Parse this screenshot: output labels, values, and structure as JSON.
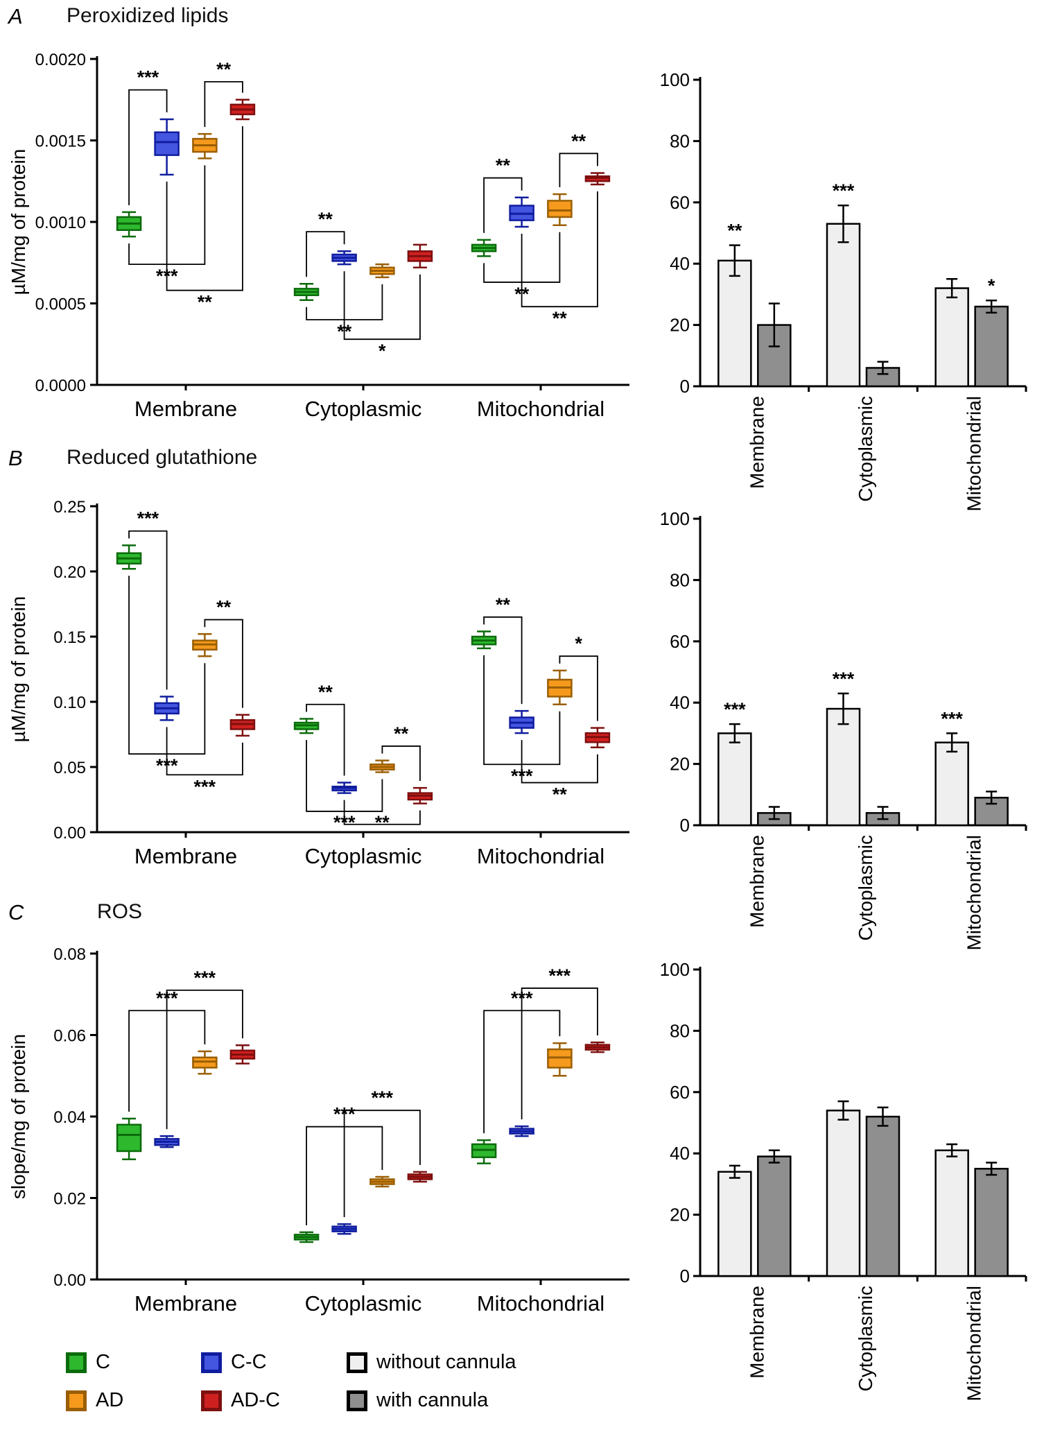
{
  "panels": [
    {
      "letter": "A",
      "title": "Peroxidized lipids"
    },
    {
      "letter": "B",
      "title": "Reduced glutathione"
    },
    {
      "letter": "C",
      "title": "ROS"
    }
  ],
  "legend": {
    "items": [
      {
        "label": "C",
        "fill": "#2eb82e",
        "border": "#0c6b0c"
      },
      {
        "label": "C-C",
        "fill": "#4455e0",
        "border": "#101d9e"
      },
      {
        "label": "without cannula",
        "fill": "#efefef",
        "border": "#000000"
      },
      {
        "label": "AD",
        "fill": "#f59a1d",
        "border": "#9a5f05"
      },
      {
        "label": "AD-C",
        "fill": "#cf2020",
        "border": "#7d0f0f"
      },
      {
        "label": "with cannula",
        "fill": "#8f8f8f",
        "border": "#000000"
      }
    ]
  },
  "series_styles": {
    "C": {
      "fill": "#2eb82e",
      "stroke": "#0c6b0c"
    },
    "C-C": {
      "fill": "#4455e0",
      "stroke": "#101d9e"
    },
    "AD": {
      "fill": "#f59a1d",
      "stroke": "#9a5f05"
    },
    "AD-C": {
      "fill": "#cf2020",
      "stroke": "#7d0f0f"
    }
  },
  "bar_styles": [
    {
      "name": "without cannula",
      "fill": "#efefef",
      "stroke": "#000000"
    },
    {
      "name": "with cannula",
      "fill": "#8f8f8f",
      "stroke": "#000000"
    }
  ],
  "chart_data": [
    {
      "panel": "A",
      "boxplot": {
        "type": "box",
        "title": "Peroxidized lipids",
        "ylabel": "µM/mg of protein",
        "ylim": [
          0,
          0.002
        ],
        "yticks": [
          0,
          0.0005,
          0.001,
          0.0015,
          0.002
        ],
        "tick_decimals": 4,
        "categories": [
          "Membrane",
          "Cytoplasmic",
          "Mitochondrial"
        ],
        "series": [
          "C",
          "C-C",
          "AD",
          "AD-C"
        ],
        "boxes": [
          [
            [
              0.00091,
              0.00095,
              0.00099,
              0.00103,
              0.00106
            ],
            [
              0.00129,
              0.00141,
              0.00149,
              0.00155,
              0.00163
            ],
            [
              0.00139,
              0.00143,
              0.00147,
              0.00151,
              0.00154
            ],
            [
              0.00163,
              0.00166,
              0.00169,
              0.00172,
              0.00175
            ]
          ],
          [
            [
              0.00052,
              0.00055,
              0.00057,
              0.00059,
              0.00062
            ],
            [
              0.00074,
              0.00076,
              0.00078,
              0.0008,
              0.00082
            ],
            [
              0.00066,
              0.00068,
              0.0007,
              0.00072,
              0.00074
            ],
            [
              0.00072,
              0.00076,
              0.00079,
              0.00082,
              0.00086
            ]
          ],
          [
            [
              0.00079,
              0.00082,
              0.00084,
              0.00086,
              0.00089
            ],
            [
              0.00097,
              0.00101,
              0.00105,
              0.0011,
              0.00115
            ],
            [
              0.00098,
              0.00103,
              0.00107,
              0.00113,
              0.00117
            ],
            [
              0.00123,
              0.00125,
              0.00127,
              0.00128,
              0.0013
            ]
          ]
        ],
        "significance": [
          {
            "cat": 0,
            "a": 0,
            "b": 1,
            "y": 0.00181,
            "side": "top",
            "label": "***"
          },
          {
            "cat": 0,
            "a": 2,
            "b": 3,
            "y": 0.00186,
            "side": "top",
            "label": "**"
          },
          {
            "cat": 0,
            "a": 0,
            "b": 2,
            "y": 0.00074,
            "side": "bottom",
            "label": "***"
          },
          {
            "cat": 0,
            "a": 1,
            "b": 3,
            "y": 0.00058,
            "side": "bottom",
            "label": "**"
          },
          {
            "cat": 1,
            "a": 0,
            "b": 1,
            "y": 0.00094,
            "side": "top",
            "label": "**"
          },
          {
            "cat": 1,
            "a": 0,
            "b": 2,
            "y": 0.0004,
            "side": "bottom",
            "label": "**"
          },
          {
            "cat": 1,
            "a": 1,
            "b": 3,
            "y": 0.00028,
            "side": "bottom",
            "label": "*"
          },
          {
            "cat": 2,
            "a": 0,
            "b": 1,
            "y": 0.00127,
            "side": "top",
            "label": "**"
          },
          {
            "cat": 2,
            "a": 2,
            "b": 3,
            "y": 0.00142,
            "side": "top",
            "label": "**"
          },
          {
            "cat": 2,
            "a": 0,
            "b": 2,
            "y": 0.00063,
            "side": "bottom",
            "label": "**"
          },
          {
            "cat": 2,
            "a": 1,
            "b": 3,
            "y": 0.00048,
            "side": "bottom",
            "label": "**"
          }
        ]
      },
      "barchart": {
        "type": "bar",
        "ylim": [
          0,
          100
        ],
        "yticks": [
          0,
          20,
          40,
          60,
          80,
          100
        ],
        "categories": [
          "Membrane",
          "Cytoplasmic",
          "Mitochondrial"
        ],
        "series": [
          {
            "name": "without cannula",
            "values": [
              41,
              53,
              32
            ],
            "errors": [
              5,
              6,
              3
            ],
            "sig": [
              "**",
              "***",
              ""
            ]
          },
          {
            "name": "with cannula",
            "values": [
              20,
              6,
              26
            ],
            "errors": [
              7,
              2,
              2
            ],
            "sig": [
              "",
              "",
              "*"
            ]
          }
        ]
      }
    },
    {
      "panel": "B",
      "boxplot": {
        "type": "box",
        "title": "Reduced glutathione",
        "ylabel": "µM/mg of protein",
        "ylim": [
          0,
          0.25
        ],
        "yticks": [
          0,
          0.05,
          0.1,
          0.15,
          0.2,
          0.25
        ],
        "tick_decimals": 2,
        "categories": [
          "Membrane",
          "Cytoplasmic",
          "Mitochondrial"
        ],
        "series": [
          "C",
          "C-C",
          "AD",
          "AD-C"
        ],
        "boxes": [
          [
            [
              0.202,
              0.206,
              0.21,
              0.214,
              0.22
            ],
            [
              0.086,
              0.091,
              0.095,
              0.099,
              0.104
            ],
            [
              0.135,
              0.14,
              0.144,
              0.147,
              0.152
            ],
            [
              0.074,
              0.079,
              0.083,
              0.086,
              0.09
            ]
          ],
          [
            [
              0.076,
              0.079,
              0.082,
              0.084,
              0.087
            ],
            [
              0.03,
              0.032,
              0.034,
              0.035,
              0.038
            ],
            [
              0.046,
              0.048,
              0.05,
              0.052,
              0.055
            ],
            [
              0.022,
              0.025,
              0.028,
              0.03,
              0.034
            ]
          ],
          [
            [
              0.141,
              0.144,
              0.147,
              0.15,
              0.154
            ],
            [
              0.076,
              0.08,
              0.084,
              0.088,
              0.093
            ],
            [
              0.098,
              0.104,
              0.111,
              0.117,
              0.124
            ],
            [
              0.065,
              0.069,
              0.073,
              0.076,
              0.08
            ]
          ]
        ],
        "significance": [
          {
            "cat": 0,
            "a": 0,
            "b": 1,
            "y": 0.231,
            "side": "top",
            "label": "***"
          },
          {
            "cat": 0,
            "a": 2,
            "b": 3,
            "y": 0.163,
            "side": "top",
            "label": "**"
          },
          {
            "cat": 0,
            "a": 0,
            "b": 2,
            "y": 0.06,
            "side": "bottom",
            "label": "***"
          },
          {
            "cat": 0,
            "a": 1,
            "b": 3,
            "y": 0.044,
            "side": "bottom",
            "label": "***"
          },
          {
            "cat": 1,
            "a": 0,
            "b": 1,
            "y": 0.098,
            "side": "top",
            "label": "**"
          },
          {
            "cat": 1,
            "a": 2,
            "b": 3,
            "y": 0.066,
            "side": "top",
            "label": "**"
          },
          {
            "cat": 1,
            "a": 0,
            "b": 2,
            "y": 0.016,
            "side": "bottom",
            "label": "***"
          },
          {
            "cat": 1,
            "a": 1,
            "b": 3,
            "y": 0.006,
            "side": "bottom",
            "label": "**"
          },
          {
            "cat": 2,
            "a": 0,
            "b": 1,
            "y": 0.165,
            "side": "top",
            "label": "**"
          },
          {
            "cat": 2,
            "a": 2,
            "b": 3,
            "y": 0.135,
            "side": "top",
            "label": "*"
          },
          {
            "cat": 2,
            "a": 0,
            "b": 2,
            "y": 0.052,
            "side": "bottom",
            "label": "***"
          },
          {
            "cat": 2,
            "a": 1,
            "b": 3,
            "y": 0.038,
            "side": "bottom",
            "label": "**"
          }
        ]
      },
      "barchart": {
        "type": "bar",
        "ylim": [
          0,
          100
        ],
        "yticks": [
          0,
          20,
          40,
          60,
          80,
          100
        ],
        "categories": [
          "Membrane",
          "Cytoplasmic",
          "Mitochondrial"
        ],
        "series": [
          {
            "name": "without cannula",
            "values": [
              30,
              38,
              27
            ],
            "errors": [
              3,
              5,
              3
            ],
            "sig": [
              "***",
              "***",
              "***"
            ]
          },
          {
            "name": "with cannula",
            "values": [
              4,
              4,
              9
            ],
            "errors": [
              2,
              2,
              2
            ],
            "sig": [
              "",
              "",
              ""
            ]
          }
        ]
      }
    },
    {
      "panel": "C",
      "boxplot": {
        "type": "box",
        "title": "ROS",
        "ylabel": "slope/mg of protein",
        "ylim": [
          0,
          0.08
        ],
        "yticks": [
          0,
          0.02,
          0.04,
          0.06,
          0.08
        ],
        "tick_decimals": 2,
        "categories": [
          "Membrane",
          "Cytoplasmic",
          "Mitochondrial"
        ],
        "series": [
          "C",
          "C-C",
          "AD",
          "AD-C"
        ],
        "boxes": [
          [
            [
              0.0295,
              0.0315,
              0.0355,
              0.038,
              0.0395
            ],
            [
              0.0325,
              0.033,
              0.0338,
              0.0345,
              0.0352
            ],
            [
              0.0505,
              0.052,
              0.0535,
              0.0545,
              0.056
            ],
            [
              0.053,
              0.0542,
              0.0552,
              0.0562,
              0.0575
            ]
          ],
          [
            [
              0.0092,
              0.0098,
              0.0104,
              0.011,
              0.0116
            ],
            [
              0.0112,
              0.0118,
              0.0124,
              0.013,
              0.0136
            ],
            [
              0.0228,
              0.0234,
              0.024,
              0.0246,
              0.0252
            ],
            [
              0.024,
              0.0246,
              0.0252,
              0.0258,
              0.0264
            ]
          ],
          [
            [
              0.0285,
              0.03,
              0.0318,
              0.0332,
              0.0342
            ],
            [
              0.0352,
              0.0358,
              0.0364,
              0.037,
              0.0376
            ],
            [
              0.05,
              0.052,
              0.0545,
              0.0565,
              0.058
            ],
            [
              0.0558,
              0.0564,
              0.057,
              0.0576,
              0.0582
            ]
          ]
        ],
        "significance": [
          {
            "cat": 0,
            "a": 0,
            "b": 2,
            "y": 0.066,
            "side": "top",
            "label": "***"
          },
          {
            "cat": 0,
            "a": 1,
            "b": 3,
            "y": 0.071,
            "side": "top",
            "label": "***"
          },
          {
            "cat": 1,
            "a": 0,
            "b": 2,
            "y": 0.0375,
            "side": "top",
            "label": "***"
          },
          {
            "cat": 1,
            "a": 1,
            "b": 3,
            "y": 0.0415,
            "side": "top",
            "label": "***"
          },
          {
            "cat": 2,
            "a": 0,
            "b": 2,
            "y": 0.066,
            "side": "top",
            "label": "***"
          },
          {
            "cat": 2,
            "a": 1,
            "b": 3,
            "y": 0.0715,
            "side": "top",
            "label": "***"
          }
        ]
      },
      "barchart": {
        "type": "bar",
        "ylim": [
          0,
          100
        ],
        "yticks": [
          0,
          20,
          40,
          60,
          80,
          100
        ],
        "categories": [
          "Membrane",
          "Cytoplasmic",
          "Mitochondrial"
        ],
        "series": [
          {
            "name": "without cannula",
            "values": [
              34,
              54,
              41
            ],
            "errors": [
              2,
              3,
              2
            ],
            "sig": [
              "",
              "",
              ""
            ]
          },
          {
            "name": "with cannula",
            "values": [
              39,
              52,
              35
            ],
            "errors": [
              2,
              3,
              2
            ],
            "sig": [
              "",
              "",
              ""
            ]
          }
        ]
      }
    }
  ]
}
